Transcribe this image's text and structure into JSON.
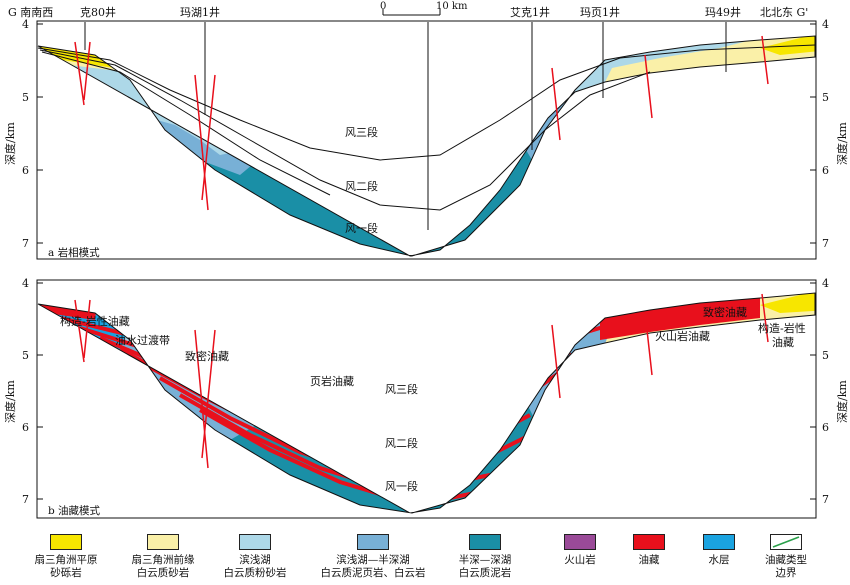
{
  "header": {
    "left_end": "G 南南西",
    "right_end": "北北东 G'",
    "wells": [
      "克80井",
      "玛湖1井",
      "艾克1井",
      "玛页1井",
      "玛49井"
    ],
    "scale_start": "0",
    "scale_end": "10 km"
  },
  "axis": {
    "label": "深度/km",
    "ticks": [
      "4",
      "5",
      "6",
      "7"
    ]
  },
  "panel_a": {
    "caption": "a 岩相模式",
    "members": [
      "风三段",
      "风二段",
      "风一段"
    ]
  },
  "panel_b": {
    "caption": "b 油藏模式",
    "reservoirs": [
      "构造-岩性油藏",
      "油水过渡带",
      "致密油藏",
      "页岩油藏",
      "火山岩油藏",
      "致密油藏",
      "构造-岩性",
      "油藏"
    ],
    "members": [
      "风三段",
      "风二段",
      "风一段"
    ]
  },
  "legend": [
    {
      "line1": "扇三角洲平原",
      "line2": "砂砾岩",
      "color": "#f7e600"
    },
    {
      "line1": "扇三角洲前缘",
      "line2": "白云质砂岩",
      "color": "#faf0a8"
    },
    {
      "line1": "滨浅湖",
      "line2": "白云质粉砂岩",
      "color": "#add8e8"
    },
    {
      "line1": "滨浅湖—半深湖",
      "line2": "白云质泥页岩、白云岩",
      "color": "#78b0d6"
    },
    {
      "line1": "半深—深湖",
      "line2": "白云质泥岩",
      "color": "#1a8fa6"
    },
    {
      "line1": "火山岩",
      "line2": "",
      "color": "#9a4a98"
    },
    {
      "line1": "油藏",
      "line2": "",
      "color": "#e8101c"
    },
    {
      "line1": "水层",
      "line2": "",
      "color": "#1aa3e0"
    },
    {
      "line1": "油藏类型",
      "line2": "边界",
      "color": "#ffffff"
    }
  ]
}
